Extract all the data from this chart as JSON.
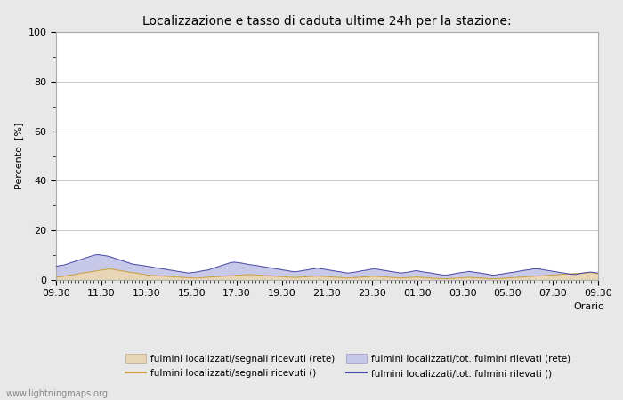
{
  "title": "Localizzazione e tasso di caduta ultime 24h per la stazione:",
  "ylabel": "Percento  [%]",
  "xlabel": "Orario",
  "ylim": [
    0,
    100
  ],
  "yticks": [
    0,
    20,
    40,
    60,
    80,
    100
  ],
  "yticks_minor": [
    10,
    30,
    50,
    70,
    90
  ],
  "x_labels": [
    "09:30",
    "11:30",
    "13:30",
    "15:30",
    "17:30",
    "19:30",
    "21:30",
    "23:30",
    "01:30",
    "03:30",
    "05:30",
    "07:30",
    "09:30"
  ],
  "background_color": "#e8e8e8",
  "plot_bg_color": "#ffffff",
  "grid_color": "#cccccc",
  "fill_color_1": "#e8d5b8",
  "fill_color_2": "#c8c8e8",
  "line_color_1": "#c8a040",
  "line_color_2": "#4848a8",
  "watermark": "www.lightningmaps.org",
  "legend": [
    {
      "label": "fulmini localizzati/segnali ricevuti (rete)",
      "type": "fill",
      "color": "#e8d5b8"
    },
    {
      "label": "fulmini localizzati/segnali ricevuti ()",
      "type": "line",
      "color": "#c8a040"
    },
    {
      "label": "fulmini localizzati/tot. fulmini rilevati (rete)",
      "type": "fill",
      "color": "#c8c8e8"
    },
    {
      "label": "fulmini localizzati/tot. fulmini rilevati ()",
      "type": "line",
      "color": "#4848a8"
    }
  ],
  "n_points": 144,
  "series1": [
    1.2,
    1.3,
    1.5,
    1.8,
    2.0,
    2.2,
    2.5,
    2.8,
    3.0,
    3.2,
    3.5,
    3.8,
    4.0,
    4.2,
    4.5,
    4.3,
    4.0,
    3.8,
    3.5,
    3.2,
    3.0,
    2.8,
    2.5,
    2.3,
    2.0,
    1.9,
    1.8,
    1.7,
    1.6,
    1.5,
    1.4,
    1.3,
    1.2,
    1.1,
    1.0,
    0.9,
    0.8,
    0.8,
    0.9,
    1.0,
    1.1,
    1.2,
    1.3,
    1.4,
    1.5,
    1.6,
    1.7,
    1.8,
    1.9,
    2.0,
    2.1,
    2.2,
    2.1,
    2.0,
    1.9,
    1.8,
    1.7,
    1.6,
    1.5,
    1.4,
    1.3,
    1.2,
    1.1,
    1.0,
    1.1,
    1.2,
    1.3,
    1.4,
    1.5,
    1.6,
    1.5,
    1.4,
    1.3,
    1.2,
    1.1,
    1.0,
    0.9,
    0.8,
    0.9,
    1.0,
    1.1,
    1.2,
    1.3,
    1.4,
    1.5,
    1.4,
    1.3,
    1.2,
    1.1,
    1.0,
    0.9,
    0.8,
    0.9,
    1.0,
    1.1,
    1.2,
    1.1,
    1.0,
    0.9,
    0.8,
    0.7,
    0.6,
    0.5,
    0.5,
    0.6,
    0.7,
    0.8,
    0.9,
    1.0,
    1.1,
    1.0,
    0.9,
    0.8,
    0.7,
    0.6,
    0.5,
    0.5,
    0.6,
    0.7,
    0.8,
    0.9,
    1.0,
    1.1,
    1.2,
    1.3,
    1.4,
    1.5,
    1.6,
    1.7,
    1.8,
    1.9,
    2.0,
    2.1,
    2.2,
    2.3,
    2.4,
    2.5,
    2.6,
    2.7,
    2.8,
    2.9,
    3.0,
    2.8,
    2.5
  ],
  "series2": [
    5.5,
    5.8,
    6.0,
    6.5,
    7.0,
    7.5,
    8.0,
    8.5,
    9.0,
    9.5,
    10.0,
    10.2,
    10.0,
    9.8,
    9.5,
    9.0,
    8.5,
    8.0,
    7.5,
    7.0,
    6.5,
    6.2,
    6.0,
    5.8,
    5.5,
    5.3,
    5.0,
    4.8,
    4.5,
    4.3,
    4.0,
    3.8,
    3.5,
    3.3,
    3.0,
    2.8,
    3.0,
    3.2,
    3.5,
    3.8,
    4.0,
    4.5,
    5.0,
    5.5,
    6.0,
    6.5,
    7.0,
    7.2,
    7.0,
    6.8,
    6.5,
    6.2,
    6.0,
    5.8,
    5.5,
    5.3,
    5.0,
    4.8,
    4.5,
    4.3,
    4.0,
    3.8,
    3.5,
    3.3,
    3.5,
    3.8,
    4.0,
    4.3,
    4.5,
    4.8,
    4.5,
    4.3,
    4.0,
    3.8,
    3.5,
    3.3,
    3.0,
    2.8,
    3.0,
    3.2,
    3.5,
    3.8,
    4.0,
    4.3,
    4.5,
    4.3,
    4.0,
    3.8,
    3.5,
    3.3,
    3.0,
    2.8,
    3.0,
    3.2,
    3.5,
    3.8,
    3.5,
    3.2,
    3.0,
    2.8,
    2.5,
    2.3,
    2.0,
    2.0,
    2.2,
    2.5,
    2.8,
    3.0,
    3.2,
    3.5,
    3.2,
    3.0,
    2.8,
    2.5,
    2.3,
    2.0,
    2.0,
    2.3,
    2.5,
    2.8,
    3.0,
    3.2,
    3.5,
    3.8,
    4.0,
    4.2,
    4.5,
    4.5,
    4.3,
    4.0,
    3.8,
    3.5,
    3.3,
    3.0,
    2.8,
    2.5,
    2.3,
    2.2,
    2.5,
    2.8,
    3.0,
    3.2,
    3.0,
    2.8
  ]
}
